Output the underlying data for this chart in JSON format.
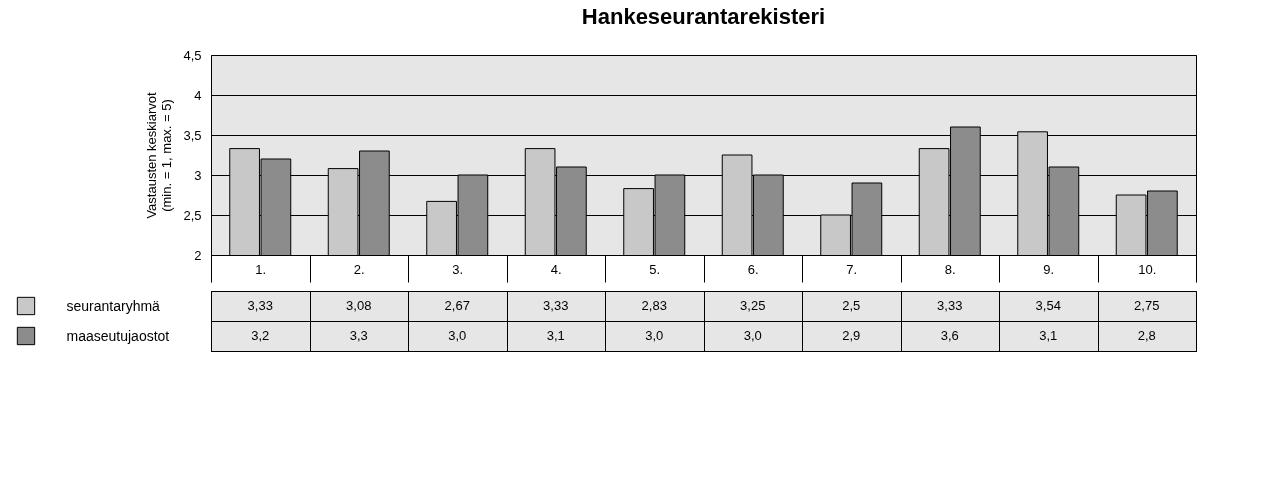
{
  "chart_data": {
    "type": "bar",
    "title": "Hankeseurantarekisteri",
    "ylabel": "Vastausten keskiarvot\n(min. = 1, max. = 5)",
    "categories": [
      "1.",
      "2.",
      "3.",
      "4.",
      "5.",
      "6.",
      "7.",
      "8.",
      "9.",
      "10."
    ],
    "series": [
      {
        "name": "seurantaryhmä",
        "color": "#c8c8c8",
        "values": [
          3.33,
          3.08,
          2.67,
          3.33,
          2.83,
          3.25,
          2.5,
          3.33,
          3.54,
          2.75
        ],
        "value_labels": [
          "3,33",
          "3,08",
          "2,67",
          "3,33",
          "2,83",
          "3,25",
          "2,5",
          "3,33",
          "3,54",
          "2,75"
        ]
      },
      {
        "name": "maaseutujaostot",
        "color": "#8c8c8c",
        "values": [
          3.2,
          3.3,
          3.0,
          3.1,
          3.0,
          3.0,
          2.9,
          3.6,
          3.1,
          2.8
        ],
        "value_labels": [
          "3,2",
          "3,3",
          "3,0",
          "3,1",
          "3,0",
          "3,0",
          "2,9",
          "3,6",
          "3,1",
          "2,8"
        ]
      }
    ],
    "ylim": [
      2,
      4.5
    ],
    "yticks": [
      2,
      {
        "value": 2.5,
        "label": "2,5"
      },
      3,
      {
        "value": 3.5,
        "label": "3,5"
      },
      4,
      {
        "value": 4.5,
        "label": "4,5"
      }
    ],
    "grid": "y",
    "legend": "bottom left"
  }
}
